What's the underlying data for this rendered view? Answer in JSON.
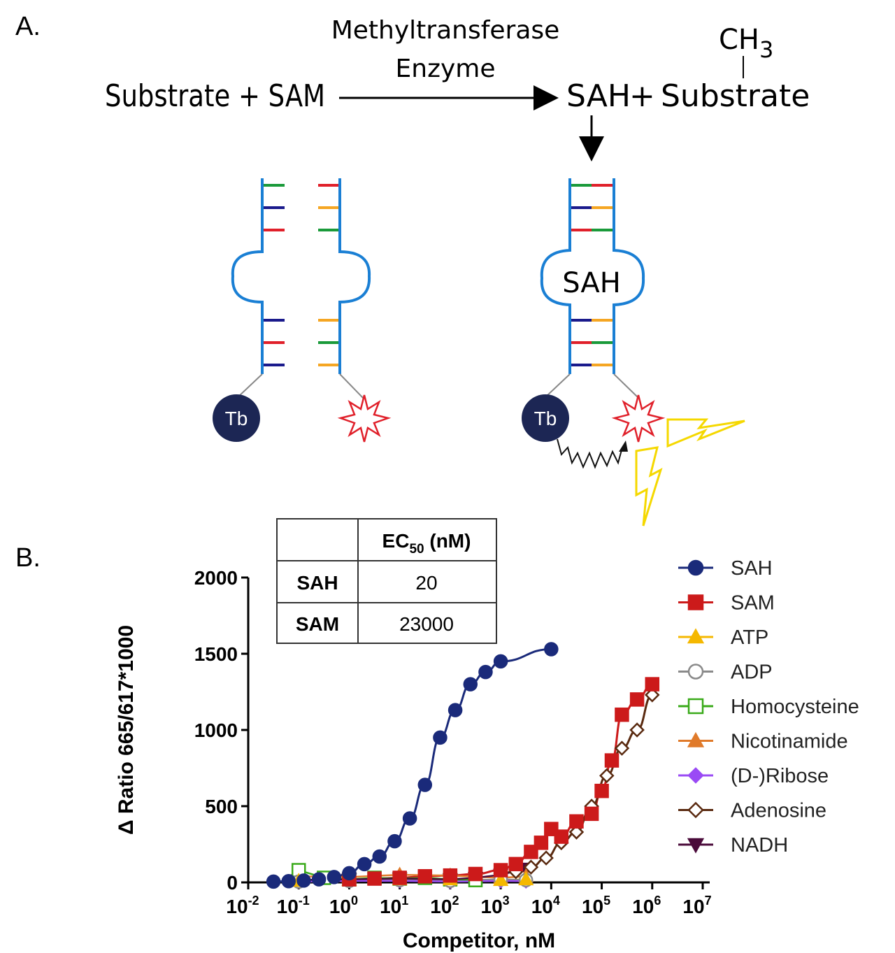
{
  "panel_a": {
    "label": "A.",
    "enzyme_line1": "Methyltransferase",
    "enzyme_line2": "Enzyme",
    "reactants": "Substrate + SAM",
    "product_sah": "SAH",
    "product_plus": "+",
    "product_substrate": "Substrate",
    "methyl_group": "CH3",
    "aptamer_bound_label": "SAH",
    "donor_label_left": "Tb",
    "donor_label_right": "Tb"
  },
  "panel_b": {
    "label": "B.",
    "table": {
      "header_blank": "",
      "header_ec50": "EC50 (nM)",
      "rows": [
        {
          "name": "SAH",
          "value": "20"
        },
        {
          "name": "SAM",
          "value": "23000"
        }
      ]
    }
  },
  "colors": {
    "strand": "#1a7fd4",
    "green": "#1a9a3a",
    "navy": "#1a1a8c",
    "red": "#e0202a",
    "orange": "#f5a623",
    "tb": "#1c2654",
    "bolt": "#f5d800"
  },
  "chart_data": {
    "type": "scatter",
    "title": "",
    "xlabel": "Competitor, nM",
    "ylabel": "Δ Ratio 665/617*1000",
    "xscale": "log10",
    "xlim_exp": [
      -2,
      7
    ],
    "ylim": [
      0,
      2000
    ],
    "xticks": [
      {
        "base": "10",
        "exp": "-2"
      },
      {
        "base": "10",
        "exp": "-1"
      },
      {
        "base": "10",
        "exp": "0"
      },
      {
        "base": "10",
        "exp": "1"
      },
      {
        "base": "10",
        "exp": "2"
      },
      {
        "base": "10",
        "exp": "3"
      },
      {
        "base": "10",
        "exp": "4"
      },
      {
        "base": "10",
        "exp": "5"
      },
      {
        "base": "10",
        "exp": "6"
      },
      {
        "base": "10",
        "exp": "7"
      }
    ],
    "yticks": [
      "0",
      "500",
      "1000",
      "1500",
      "2000"
    ],
    "legend_position": "right",
    "series": [
      {
        "name": "SAH",
        "color": "#1a2a7a",
        "marker": "circle",
        "fill": "solid",
        "log_x": [
          -1.5,
          -1.2,
          -0.9,
          -0.6,
          -0.3,
          0.0,
          0.3,
          0.6,
          0.9,
          1.2,
          1.5,
          1.8,
          2.1,
          2.4,
          2.7,
          3.0,
          4.0
        ],
        "y": [
          5,
          8,
          12,
          20,
          35,
          60,
          120,
          170,
          270,
          420,
          640,
          950,
          1130,
          1300,
          1380,
          1450,
          1530
        ],
        "fit": true
      },
      {
        "name": "SAM",
        "color": "#cc1a1a",
        "marker": "square",
        "fill": "solid",
        "log_x": [
          0.0,
          0.5,
          1.0,
          1.5,
          2.0,
          2.5,
          3.0,
          3.3,
          3.6,
          3.8,
          4.0,
          4.2,
          4.5,
          4.8,
          5.0,
          5.2,
          5.4,
          5.7,
          6.0
        ],
        "y": [
          20,
          25,
          30,
          40,
          45,
          55,
          80,
          120,
          200,
          260,
          350,
          300,
          400,
          450,
          600,
          800,
          1100,
          1200,
          1300
        ],
        "fit": true
      },
      {
        "name": "ATP",
        "color": "#f5b800",
        "marker": "triangle-up",
        "fill": "solid",
        "log_x": [
          -1.0,
          0.0,
          1.0,
          2.0,
          3.0,
          3.5
        ],
        "y": [
          10,
          15,
          20,
          20,
          15,
          20
        ],
        "fit": false
      },
      {
        "name": "ADP",
        "color": "#8a8a8a",
        "marker": "circle",
        "fill": "open",
        "log_x": [
          -1.0,
          0.0,
          1.0,
          2.0,
          3.0,
          3.5
        ],
        "y": [
          5,
          10,
          15,
          10,
          20,
          15
        ],
        "fit": false
      },
      {
        "name": "Homocysteine",
        "color": "#3aaa1a",
        "marker": "square",
        "fill": "open",
        "log_x": [
          -1.0,
          -0.5,
          0.0,
          0.5,
          1.0,
          1.5,
          2.0,
          2.5
        ],
        "y": [
          80,
          30,
          20,
          30,
          25,
          30,
          20,
          15
        ],
        "fit": false
      },
      {
        "name": "Nicotinamide",
        "color": "#e07a2a",
        "marker": "triangle-up",
        "fill": "solid",
        "log_x": [
          -1.0,
          0.0,
          1.0,
          2.0,
          3.0,
          3.5
        ],
        "y": [
          40,
          35,
          50,
          45,
          30,
          40
        ],
        "fit": false
      },
      {
        "name": "(D-)Ribose",
        "color": "#9a4af5",
        "marker": "diamond",
        "fill": "solid",
        "log_x": [
          -1.0,
          0.0,
          1.0,
          2.0,
          3.0,
          3.5
        ],
        "y": [
          5,
          10,
          10,
          5,
          10,
          8
        ],
        "fit": false
      },
      {
        "name": "Adenosine",
        "color": "#5a2a10",
        "marker": "diamond",
        "fill": "open",
        "log_x": [
          3.0,
          3.3,
          3.6,
          3.9,
          4.2,
          4.5,
          4.8,
          5.1,
          5.4,
          5.7,
          6.0
        ],
        "y": [
          60,
          70,
          100,
          160,
          260,
          330,
          500,
          700,
          880,
          1000,
          1230
        ],
        "fit": true
      },
      {
        "name": "NADH",
        "color": "#4a0a3a",
        "marker": "triangle-down",
        "fill": "solid",
        "log_x": [
          -1.0,
          0.0,
          1.0,
          2.0,
          2.5,
          3.0,
          3.5
        ],
        "y": [
          15,
          20,
          25,
          20,
          30,
          50,
          90
        ],
        "fit": false
      }
    ]
  }
}
